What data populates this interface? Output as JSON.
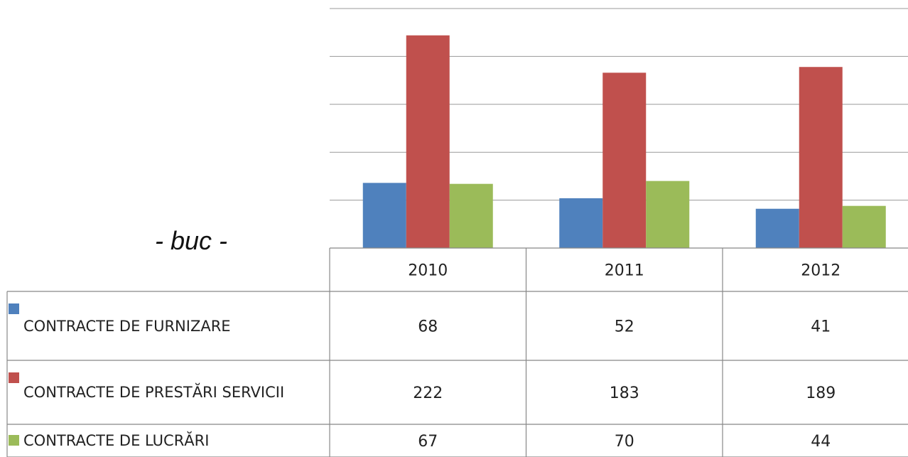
{
  "chart_data": {
    "type": "bar",
    "unit_label": "- buc -",
    "categories": [
      "2010",
      "2011",
      "2012"
    ],
    "series": [
      {
        "name": "CONTRACTE DE FURNIZARE",
        "color": "#4f81bd",
        "values": [
          68,
          52,
          41
        ]
      },
      {
        "name": "CONTRACTE DE PRESTĂRI SERVICII",
        "color": "#c0504d",
        "values": [
          222,
          183,
          189
        ]
      },
      {
        "name": "CONTRACTE DE LUCRĂRI",
        "color": "#9bbb59",
        "values": [
          67,
          70,
          44
        ]
      }
    ],
    "ylim": [
      0,
      250
    ],
    "yticks": [
      0,
      50,
      100,
      150,
      200,
      250
    ],
    "grid": true
  }
}
